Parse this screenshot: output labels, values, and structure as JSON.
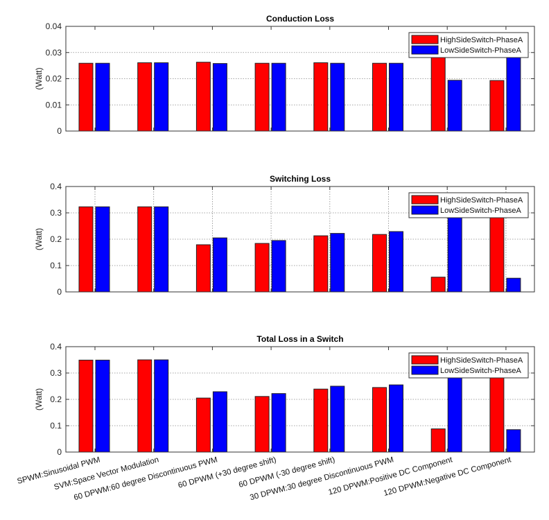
{
  "chart_data": [
    {
      "type": "bar",
      "title": "Conduction Loss",
      "xlabel": "",
      "ylabel": "(Watt)",
      "ylim": [
        0,
        0.04
      ],
      "yticks": [
        0,
        0.01,
        0.02,
        0.03,
        0.04
      ],
      "ytick_labels": [
        "0",
        "0.01",
        "0.02",
        "0.03",
        "0.04"
      ],
      "grid": "y-dotted",
      "legend_position": "top-right",
      "categories": [
        "SPWM:Sinusoidal PWM",
        "SVM:Space Vector Modulation",
        "60 DPWM:60 degree Discontinuous PWM",
        "60 DPWM (+30 degree shift)",
        "60 DPWM (-30 degree shift)",
        "30 DPWM:30 degree Discontinuous PWM",
        "120 DPWM:Positive DC Component",
        "120 DPWM:Negative DC Component"
      ],
      "series": [
        {
          "name": "HighSideSwitch-PhaseA",
          "color": "#ff0000",
          "values": [
            0.0259,
            0.0261,
            0.0263,
            0.0259,
            0.0261,
            0.0259,
            0.033,
            0.0193
          ]
        },
        {
          "name": "LowSideSwitch-PhaseA",
          "color": "#0000ff",
          "values": [
            0.0259,
            0.0261,
            0.0258,
            0.0259,
            0.0259,
            0.0259,
            0.0194,
            0.033
          ]
        }
      ]
    },
    {
      "type": "bar",
      "title": "Switching Loss",
      "xlabel": "",
      "ylabel": "(Watt)",
      "ylim": [
        0,
        0.4
      ],
      "yticks": [
        0,
        0.1,
        0.2,
        0.3,
        0.4
      ],
      "ytick_labels": [
        "0",
        "0.1",
        "0.2",
        "0.3",
        "0.4"
      ],
      "grid": "xy-dotted",
      "legend_position": "top-right",
      "categories": [
        "SPWM:Sinusoidal PWM",
        "SVM:Space Vector Modulation",
        "60 DPWM:60 degree Discontinuous PWM",
        "60 DPWM (+30 degree shift)",
        "60 DPWM (-30 degree shift)",
        "30 DPWM:30 degree Discontinuous PWM",
        "120 DPWM:Positive DC Component",
        "120 DPWM:Negative DC Component"
      ],
      "series": [
        {
          "name": "HighSideSwitch-PhaseA",
          "color": "#ff0000",
          "values": [
            0.323,
            0.323,
            0.179,
            0.184,
            0.213,
            0.218,
            0.056,
            0.33
          ]
        },
        {
          "name": "LowSideSwitch-PhaseA",
          "color": "#0000ff",
          "values": [
            0.323,
            0.323,
            0.205,
            0.195,
            0.222,
            0.229,
            0.33,
            0.052
          ]
        }
      ]
    },
    {
      "type": "bar",
      "title": "Total Loss in a Switch",
      "xlabel": "",
      "ylabel": "(Watt)",
      "ylim": [
        0,
        0.4
      ],
      "yticks": [
        0,
        0.1,
        0.2,
        0.3,
        0.4
      ],
      "ytick_labels": [
        "0",
        "0.1",
        "0.2",
        "0.3",
        "0.4"
      ],
      "grid": "y-dotted",
      "legend_position": "top-right",
      "categories": [
        "SPWM:Sinusoidal PWM",
        "SVM:Space Vector Modulation",
        "60 DPWM:60 degree Discontinuous PWM",
        "60 DPWM (+30 degree shift)",
        "60 DPWM (-30 degree shift)",
        "30 DPWM:30 degree Discontinuous PWM",
        "120 DPWM:Positive DC Component",
        "120 DPWM:Negative DC Component"
      ],
      "series": [
        {
          "name": "HighSideSwitch-PhaseA",
          "color": "#ff0000",
          "values": [
            0.349,
            0.35,
            0.205,
            0.211,
            0.239,
            0.245,
            0.088,
            0.363
          ]
        },
        {
          "name": "LowSideSwitch-PhaseA",
          "color": "#0000ff",
          "values": [
            0.349,
            0.35,
            0.229,
            0.222,
            0.25,
            0.255,
            0.363,
            0.085
          ]
        }
      ]
    }
  ]
}
